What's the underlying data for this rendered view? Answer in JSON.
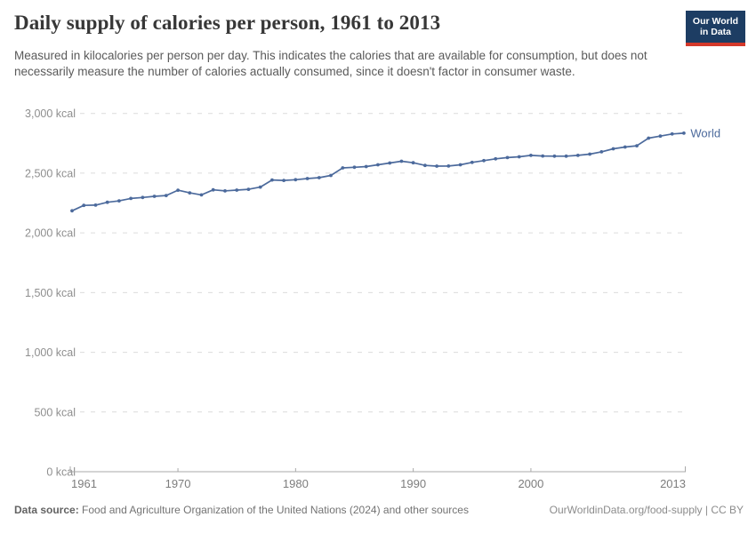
{
  "header": {
    "title": "Daily supply of calories per person, 1961 to 2013",
    "subtitle": "Measured in kilocalories per person per day. This indicates the calories that are available for consumption, but does not necessarily measure the number of calories actually consumed, since it doesn't factor in consumer waste.",
    "logo": {
      "line1": "Our World",
      "line2": "in Data"
    }
  },
  "footer": {
    "source_label": "Data source:",
    "source_text": " Food and Agriculture Organization of the United Nations (2024) and other sources",
    "right_text": "OurWorldinData.org/food-supply | CC BY"
  },
  "chart_data": {
    "type": "line",
    "title": "Daily supply of calories per person, 1961 to 2013",
    "unit": "kcal",
    "xlabel": "",
    "ylabel": "",
    "xlim": [
      1961,
      2013
    ],
    "ylim": [
      0,
      3000
    ],
    "grid": "horizontal-dashed",
    "legend_position": "series-end-label",
    "line_color": "#4c6a9c",
    "x": [
      1961,
      1962,
      1963,
      1964,
      1965,
      1966,
      1967,
      1968,
      1969,
      1970,
      1971,
      1972,
      1973,
      1974,
      1975,
      1976,
      1977,
      1978,
      1979,
      1980,
      1981,
      1982,
      1983,
      1984,
      1985,
      1986,
      1987,
      1988,
      1989,
      1990,
      1991,
      1992,
      1993,
      1994,
      1995,
      1996,
      1997,
      1998,
      1999,
      2000,
      2001,
      2002,
      2003,
      2004,
      2005,
      2006,
      2007,
      2008,
      2009,
      2010,
      2011,
      2012,
      2013
    ],
    "series": [
      {
        "name": "World",
        "values": [
          2185,
          2230,
          2232,
          2256,
          2268,
          2288,
          2296,
          2306,
          2313,
          2357,
          2335,
          2318,
          2360,
          2351,
          2358,
          2365,
          2383,
          2443,
          2439,
          2445,
          2455,
          2462,
          2481,
          2544,
          2549,
          2555,
          2570,
          2585,
          2600,
          2587,
          2565,
          2559,
          2560,
          2570,
          2590,
          2605,
          2620,
          2630,
          2637,
          2649,
          2644,
          2642,
          2642,
          2649,
          2659,
          2679,
          2704,
          2719,
          2729,
          2793,
          2810,
          2828,
          2835
        ]
      }
    ],
    "y_ticks": [
      {
        "value": 3000,
        "label": "3,000 kcal"
      },
      {
        "value": 2500,
        "label": "2,500 kcal"
      },
      {
        "value": 2000,
        "label": "2,000 kcal"
      },
      {
        "value": 1500,
        "label": "1,500 kcal"
      },
      {
        "value": 1000,
        "label": "1,000 kcal"
      },
      {
        "value": 500,
        "label": "500 kcal"
      },
      {
        "value": 0,
        "label": "0 kcal"
      }
    ],
    "x_ticks": [
      {
        "year": 1961,
        "label": "1961",
        "anchor": "start"
      },
      {
        "year": 1970,
        "label": "1970",
        "anchor": "middle"
      },
      {
        "year": 1980,
        "label": "1980",
        "anchor": "middle"
      },
      {
        "year": 1990,
        "label": "1990",
        "anchor": "middle"
      },
      {
        "year": 2000,
        "label": "2000",
        "anchor": "middle"
      },
      {
        "year": 2013,
        "label": "2013",
        "anchor": "end"
      }
    ]
  }
}
